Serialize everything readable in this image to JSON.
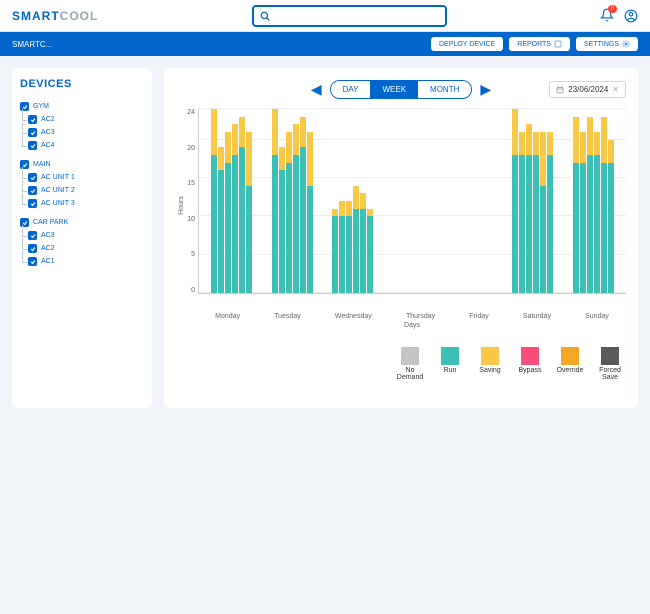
{
  "brand": {
    "part1": "SMART",
    "part2": "COOL"
  },
  "search": {
    "placeholder": ""
  },
  "notification_count": "0",
  "breadcrumb": "SMARTC...",
  "toolbar": {
    "deploy": "DEPLOY DEVICE",
    "reports": "REPORTS",
    "settings": "SETTINGS"
  },
  "sidebar": {
    "title": "DEVICES",
    "groups": [
      {
        "name": "GYM",
        "items": [
          "AC2",
          "AC3",
          "AC4"
        ]
      },
      {
        "name": "MAIN",
        "items": [
          "AC UNIT 1",
          "AC UNIT 2",
          "AC UNIT 3"
        ]
      },
      {
        "name": "CAR PARK",
        "items": [
          "AC3",
          "AC2",
          "AC1"
        ]
      }
    ]
  },
  "period": {
    "day": "DAY",
    "week": "WEEK",
    "month": "MONTH",
    "active": "WEEK"
  },
  "date": "23/06/2024",
  "chart": {
    "type": "stacked-bar",
    "y_label": "Hours",
    "y_ticks": [
      0,
      5,
      10,
      15,
      20,
      24
    ],
    "y_max": 24,
    "x_label": "Days",
    "days": [
      "Monday",
      "Tuesday",
      "Wednesday",
      "Thursday",
      "Friday",
      "Saturday",
      "Sunday"
    ],
    "colors": {
      "run": "#3cbfb4",
      "saving": "#f9c847",
      "no_demand": "#c4c4c4",
      "bypass": "#f94d7a",
      "override": "#f5a623",
      "forced_save": "#5a5a5a",
      "grid": "#eeeeee",
      "axis": "#cccccc"
    },
    "series": [
      [
        {
          "run": 18,
          "saving": 6
        },
        {
          "run": 16,
          "saving": 3
        },
        {
          "run": 17,
          "saving": 4
        },
        {
          "run": 18,
          "saving": 4
        },
        {
          "run": 19,
          "saving": 4
        },
        {
          "run": 14,
          "saving": 7
        }
      ],
      [
        {
          "run": 18,
          "saving": 6
        },
        {
          "run": 16,
          "saving": 3
        },
        {
          "run": 17,
          "saving": 4
        },
        {
          "run": 18,
          "saving": 4
        },
        {
          "run": 19,
          "saving": 4
        },
        {
          "run": 14,
          "saving": 7
        }
      ],
      [
        {
          "run": 10,
          "saving": 1
        },
        {
          "run": 10,
          "saving": 2
        },
        {
          "run": 10,
          "saving": 2
        },
        {
          "run": 11,
          "saving": 3
        },
        {
          "run": 11,
          "saving": 2
        },
        {
          "run": 10,
          "saving": 1
        }
      ],
      [],
      [],
      [
        {
          "run": 18,
          "saving": 6
        },
        {
          "run": 18,
          "saving": 3
        },
        {
          "run": 18,
          "saving": 4
        },
        {
          "run": 18,
          "saving": 3
        },
        {
          "run": 14,
          "saving": 7
        },
        {
          "run": 18,
          "saving": 3
        }
      ],
      [
        {
          "run": 17,
          "saving": 6
        },
        {
          "run": 17,
          "saving": 4
        },
        {
          "run": 18,
          "saving": 5
        },
        {
          "run": 18,
          "saving": 3
        },
        {
          "run": 17,
          "saving": 6
        },
        {
          "run": 17,
          "saving": 3
        }
      ]
    ]
  },
  "legend": [
    {
      "label": "No Demand",
      "color": "#c4c4c4"
    },
    {
      "label": "Run",
      "color": "#3cbfb4"
    },
    {
      "label": "Saving",
      "color": "#f9c847"
    },
    {
      "label": "Bypass",
      "color": "#f94d7a"
    },
    {
      "label": "Override",
      "color": "#f5a623"
    },
    {
      "label": "Forced Save",
      "color": "#5a5a5a"
    }
  ]
}
